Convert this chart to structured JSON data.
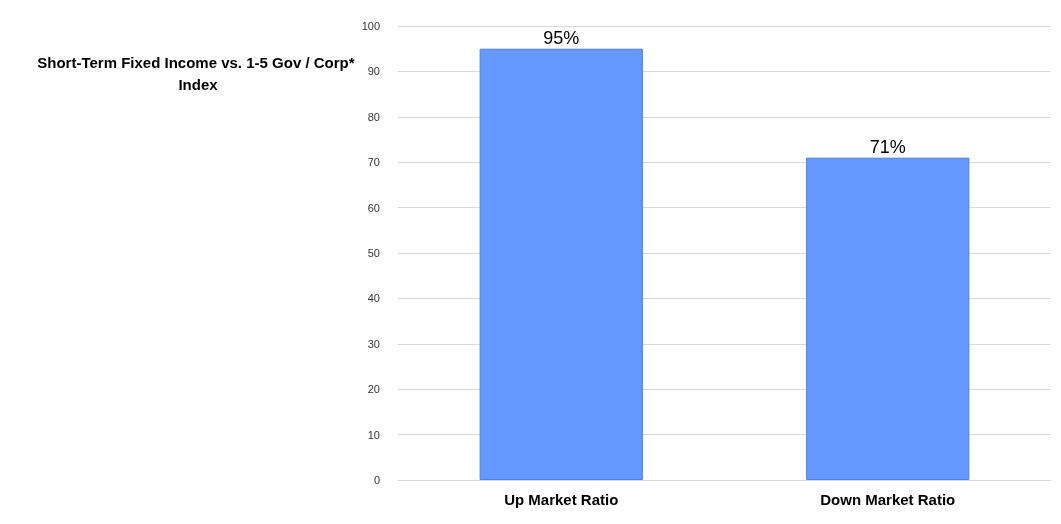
{
  "chart_data": {
    "type": "bar",
    "title": "Short-Term Fixed Income vs. 1-5 Gov / Corp* Index",
    "categories": [
      "Up Market Ratio",
      "Down Market Ratio"
    ],
    "values": [
      95,
      71
    ],
    "value_labels": [
      "95%",
      "71%"
    ],
    "color": "#6699ff",
    "ylim": [
      0,
      100
    ],
    "yticks": [
      0,
      10,
      20,
      30,
      40,
      50,
      60,
      70,
      80,
      90,
      100
    ],
    "grid": "y"
  }
}
